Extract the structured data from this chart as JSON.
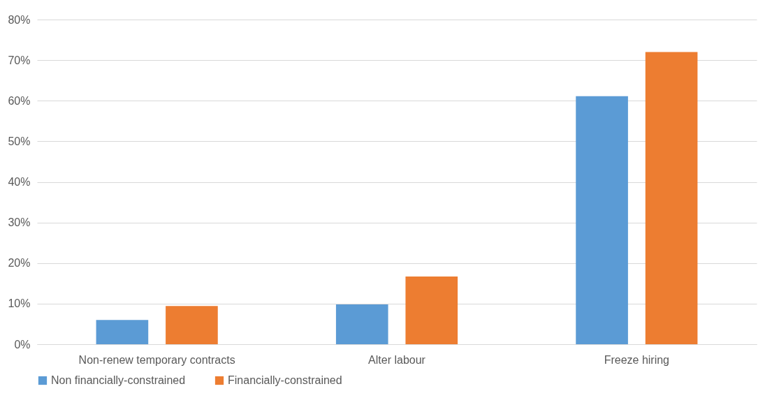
{
  "chart_data": {
    "type": "bar",
    "categories": [
      "Non-renew temporary contracts",
      "Alter labour",
      "Freeze hiring"
    ],
    "series": [
      {
        "name": "Non financially-constrained",
        "color": "#5b9bd5",
        "values": [
          6.0,
          9.8,
          61.1
        ]
      },
      {
        "name": "Financially-constrained",
        "color": "#ed7d31",
        "values": [
          9.4,
          16.7,
          72.0
        ]
      }
    ],
    "ylim": [
      0,
      80
    ],
    "yticks": [
      {
        "value": 0,
        "label": "0%"
      },
      {
        "value": 10,
        "label": "10%"
      },
      {
        "value": 20,
        "label": "20%"
      },
      {
        "value": 30,
        "label": "30%"
      },
      {
        "value": 40,
        "label": "40%"
      },
      {
        "value": 50,
        "label": "50%"
      },
      {
        "value": 60,
        "label": "60%"
      },
      {
        "value": 70,
        "label": "70%"
      },
      {
        "value": 80,
        "label": "80%"
      }
    ],
    "grid": "y",
    "legend": "bottom"
  }
}
